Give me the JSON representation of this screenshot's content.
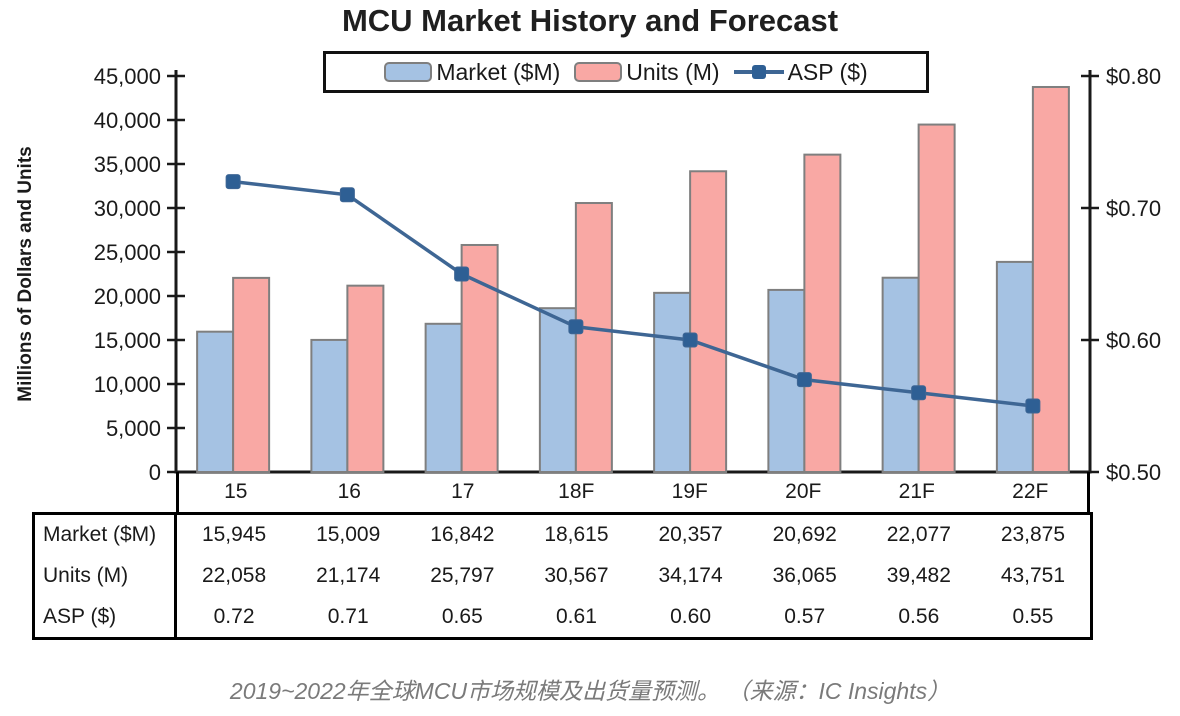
{
  "title": "MCU Market History and Forecast",
  "caption": "2019~2022年全球MCU市场规模及出货量预测。 （来源：IC Insights）",
  "colors": {
    "market_fill": "#a5c2e3",
    "units_fill": "#f9a8a4",
    "bar_border": "#7f7f7f",
    "asp_line": "#3e6694",
    "asp_marker": "#2e5f94",
    "axis": "#1a1a1a"
  },
  "chart_data": {
    "type": "bar",
    "title": "MCU Market History and Forecast",
    "categories": [
      "15",
      "16",
      "17",
      "18F",
      "19F",
      "20F",
      "21F",
      "22F"
    ],
    "series": [
      {
        "name": "Market ($M)",
        "type": "bar",
        "axis": "left",
        "values": [
          15945,
          15009,
          16842,
          18615,
          20357,
          20692,
          22077,
          23875
        ]
      },
      {
        "name": "Units (M)",
        "type": "bar",
        "axis": "left",
        "values": [
          22058,
          21174,
          25797,
          30567,
          34174,
          36065,
          39482,
          43751
        ]
      },
      {
        "name": "ASP ($)",
        "type": "line",
        "axis": "right",
        "values": [
          0.72,
          0.71,
          0.65,
          0.61,
          0.6,
          0.57,
          0.56,
          0.55
        ]
      }
    ],
    "xlabel": "",
    "ylabel": "Millions of Dollars and Units",
    "left_axis": {
      "min": 0,
      "max": 45000,
      "step": 5000,
      "format": "thousands"
    },
    "right_axis": {
      "min": 0.5,
      "max": 0.8,
      "step": 0.1,
      "format": "usd2"
    },
    "legend_position": "top",
    "grid": false
  },
  "table": {
    "col_headers": [
      "15",
      "16",
      "17",
      "18F",
      "19F",
      "20F",
      "21F",
      "22F"
    ],
    "rows": [
      {
        "label": "Market ($M)",
        "values": [
          "15,945",
          "15,009",
          "16,842",
          "18,615",
          "20,357",
          "20,692",
          "22,077",
          "23,875"
        ]
      },
      {
        "label": "Units (M)",
        "values": [
          "22,058",
          "21,174",
          "25,797",
          "30,567",
          "34,174",
          "36,065",
          "39,482",
          "43,751"
        ]
      },
      {
        "label": "ASP ($)",
        "values": [
          "0.72",
          "0.71",
          "0.65",
          "0.61",
          "0.60",
          "0.57",
          "0.56",
          "0.55"
        ]
      }
    ]
  }
}
